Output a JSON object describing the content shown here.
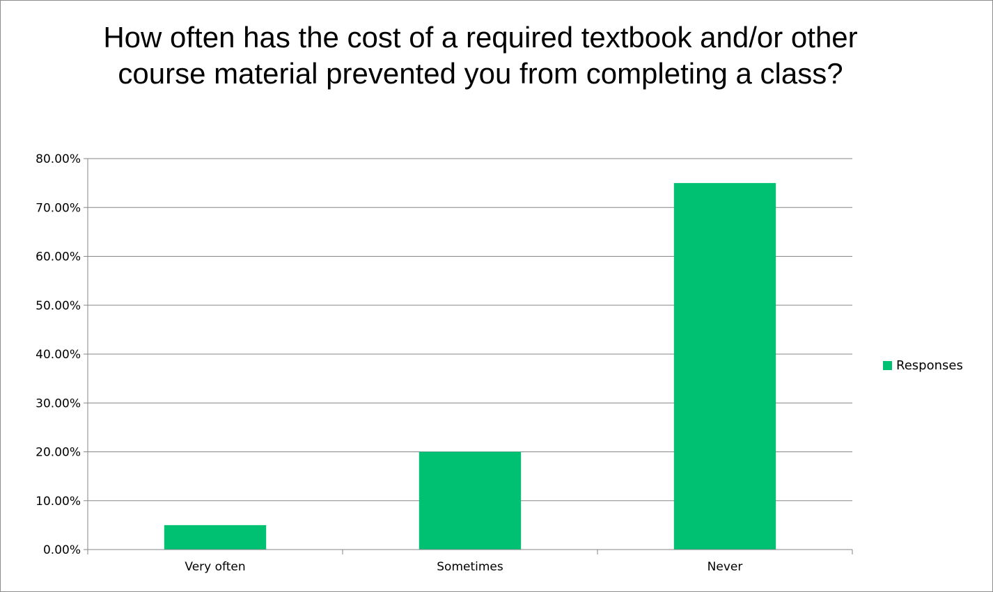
{
  "chart_data": {
    "type": "bar",
    "title": "How often has the cost of a required textbook and/or other course material prevented you from completing a class?",
    "categories": [
      "Very often",
      "Sometimes",
      "Never"
    ],
    "series": [
      {
        "name": "Responses",
        "values": [
          0.05,
          0.2,
          0.75
        ],
        "color": "#00c072"
      }
    ],
    "y_ticks": [
      "0.00%",
      "10.00%",
      "20.00%",
      "30.00%",
      "40.00%",
      "50.00%",
      "60.00%",
      "70.00%",
      "80.00%"
    ],
    "ylim": [
      0,
      0.8
    ],
    "grid": true,
    "legend_position": "right"
  }
}
